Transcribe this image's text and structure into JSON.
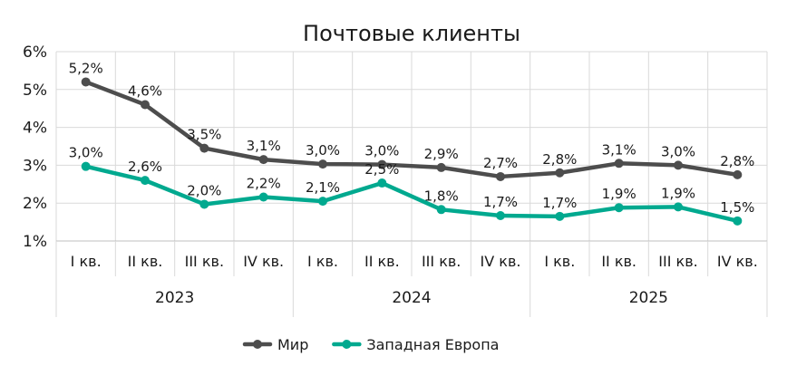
{
  "chart_data": {
    "type": "line",
    "title": "Почтовые клиенты",
    "categories": [
      "I кв.",
      "II кв.",
      "III кв.",
      "IV кв.",
      "I кв.",
      "II кв.",
      "III кв.",
      "IV кв.",
      "I кв.",
      "II кв.",
      "III кв.",
      "IV кв."
    ],
    "groups": [
      {
        "label": "2023",
        "count": 4
      },
      {
        "label": "2024",
        "count": 4
      },
      {
        "label": "2025",
        "count": 4
      }
    ],
    "series": [
      {
        "name": "Мир",
        "color": "#4d4d4d",
        "values": [
          5.2,
          4.6,
          3.45,
          3.15,
          3.03,
          3.02,
          2.94,
          2.7,
          2.8,
          3.05,
          3.0,
          2.75
        ],
        "labels": [
          "5,2%",
          "4,6%",
          "3,5%",
          "3,1%",
          "3,0%",
          "3,0%",
          "2,9%",
          "2,7%",
          "2,8%",
          "3,1%",
          "3,0%",
          "2,8%"
        ]
      },
      {
        "name": "Западная Европа",
        "color": "#00a98f",
        "values": [
          2.97,
          2.6,
          1.97,
          2.16,
          2.05,
          2.53,
          1.83,
          1.67,
          1.65,
          1.88,
          1.9,
          1.53
        ],
        "labels": [
          "3,0%",
          "2,6%",
          "2,0%",
          "2,2%",
          "2,1%",
          "2,5%",
          "1,8%",
          "1,7%",
          "1,7%",
          "1,9%",
          "1,9%",
          "1,5%"
        ]
      }
    ],
    "yticks": [
      "1%",
      "2%",
      "3%",
      "4%",
      "5%",
      "6%"
    ],
    "ylim": [
      1,
      6
    ],
    "grid": true,
    "legend": "bottom"
  }
}
